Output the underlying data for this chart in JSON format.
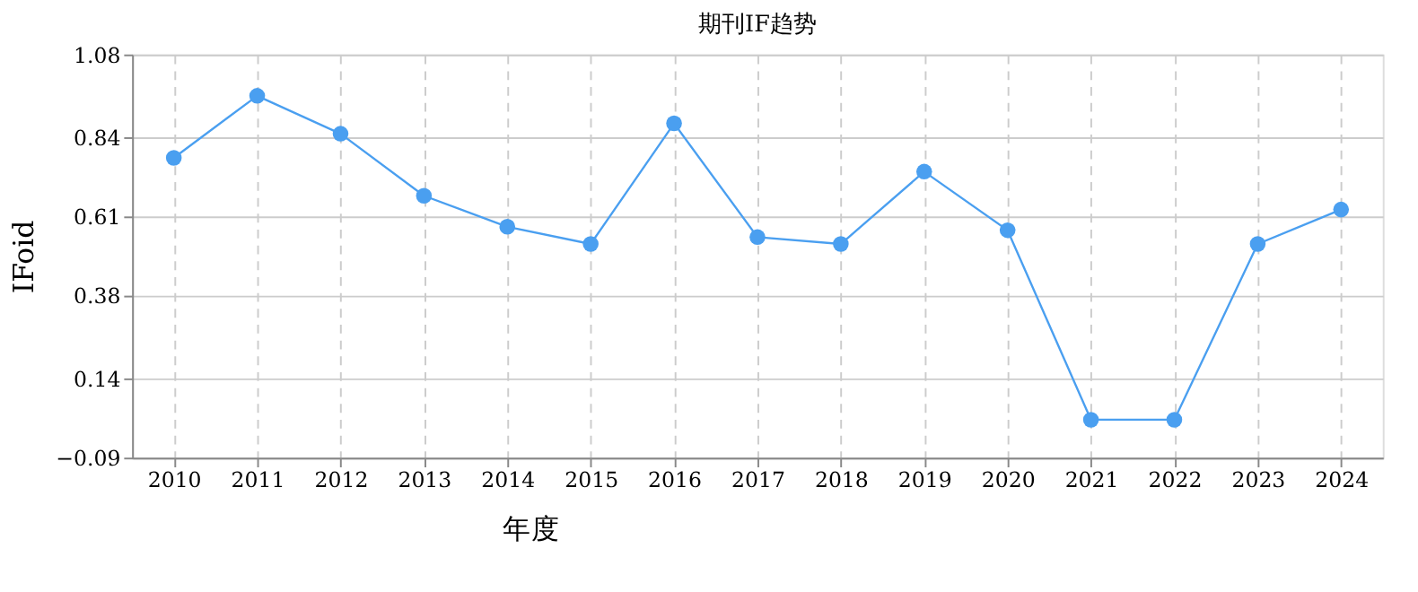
{
  "chart_data": {
    "type": "line",
    "title": "期刊IF趋势",
    "xlabel": "年度",
    "ylabel": "IFoid",
    "categories": [
      "2010",
      "2011",
      "2012",
      "2013",
      "2014",
      "2015",
      "2016",
      "2017",
      "2018",
      "2019",
      "2020",
      "2021",
      "2022",
      "2023",
      "2024"
    ],
    "series": [
      {
        "color": "#4a9ff0",
        "values": [
          0.78,
          0.96,
          0.85,
          0.67,
          0.58,
          0.53,
          0.88,
          0.55,
          0.53,
          0.74,
          0.57,
          0.02,
          0.02,
          0.53,
          0.63
        ]
      }
    ],
    "ylim": [
      -0.09,
      1.08
    ],
    "yticks": [
      -0.09,
      0.14,
      0.38,
      0.61,
      0.84,
      1.08
    ],
    "grid": true,
    "marker": "circle",
    "line_style": "solid"
  }
}
